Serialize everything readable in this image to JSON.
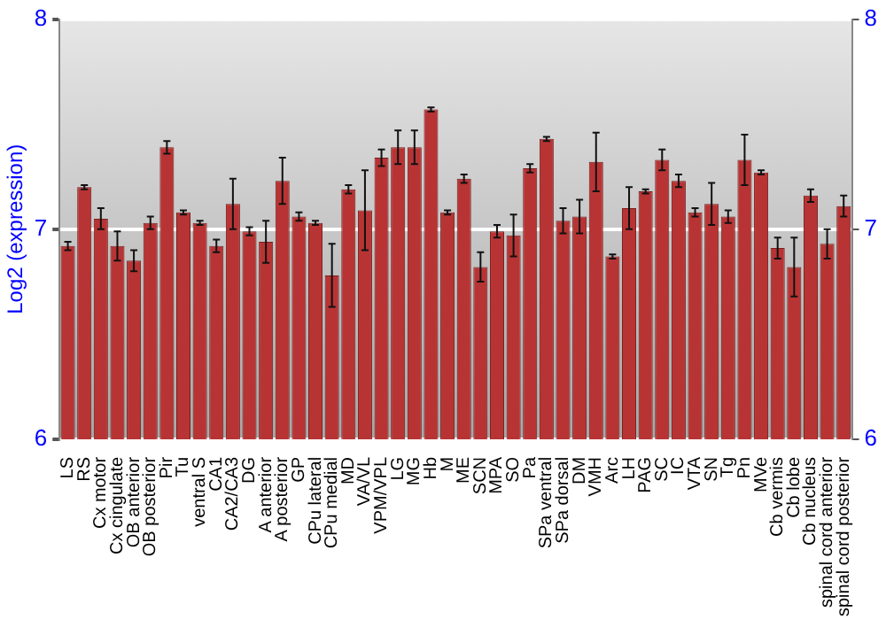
{
  "chart_data": {
    "type": "bar",
    "ylabel": "Log2 (expression)",
    "categories": [
      "LS",
      "RS",
      "Cx motor",
      "Cx cingulate",
      "OB anterior",
      "OB posterior",
      "Pir",
      "Tu",
      "ventral S",
      "CA1",
      "CA2/CA3",
      "DG",
      "A anterior",
      "A posterior",
      "GP",
      "CPu lateral",
      "CPu medial",
      "MD",
      "VA/VL",
      "VPM/VPL",
      "LG",
      "MG",
      "Hb",
      "M",
      "ME",
      "SCN",
      "MPA",
      "SO",
      "Pa",
      "SPa ventral",
      "SPa dorsal",
      "DM",
      "VMH",
      "Arc",
      "LH",
      "PAG",
      "SC",
      "IC",
      "VTA",
      "SN",
      "Tg",
      "Pn",
      "MVe",
      "Cb vermis",
      "Cb lobe",
      "Cb nucleus",
      "spinal cord anterior",
      "spinal cord posterior"
    ],
    "values": [
      6.92,
      7.2,
      7.05,
      6.92,
      6.85,
      7.03,
      7.39,
      7.08,
      7.03,
      6.92,
      7.12,
      6.99,
      6.94,
      7.23,
      7.06,
      7.03,
      6.78,
      7.19,
      7.09,
      7.34,
      7.39,
      7.39,
      7.57,
      7.08,
      7.24,
      6.82,
      6.99,
      6.97,
      7.29,
      7.43,
      7.04,
      7.06,
      7.32,
      6.87,
      7.1,
      7.18,
      7.33,
      7.23,
      7.08,
      7.12,
      7.06,
      7.33,
      7.27,
      6.91,
      6.82,
      7.16,
      6.93,
      7.11
    ],
    "errors": [
      0.02,
      0.01,
      0.05,
      0.07,
      0.05,
      0.03,
      0.03,
      0.01,
      0.01,
      0.03,
      0.12,
      0.02,
      0.1,
      0.11,
      0.02,
      0.01,
      0.15,
      0.02,
      0.19,
      0.04,
      0.08,
      0.08,
      0.01,
      0.01,
      0.02,
      0.07,
      0.03,
      0.1,
      0.02,
      0.01,
      0.06,
      0.08,
      0.14,
      0.01,
      0.1,
      0.01,
      0.05,
      0.03,
      0.02,
      0.1,
      0.03,
      0.12,
      0.01,
      0.05,
      0.14,
      0.03,
      0.07,
      0.05
    ],
    "color": "#b83434",
    "ylim": [
      6,
      8
    ],
    "yticks": [
      6,
      7,
      8
    ],
    "y2lim": [
      6,
      8
    ],
    "y2ticks": [
      6,
      7,
      8
    ],
    "grid": "y"
  }
}
